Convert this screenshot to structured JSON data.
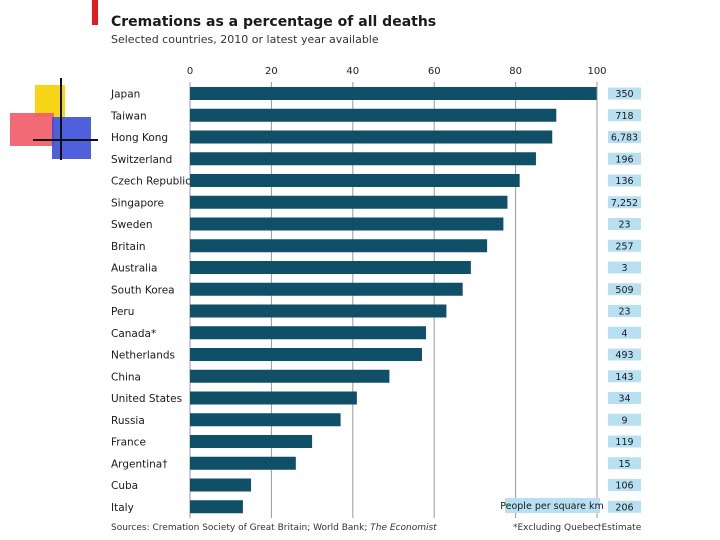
{
  "chart_data": {
    "type": "bar",
    "orientation": "horizontal",
    "title": "Cremations as a percentage of all deaths",
    "subtitle": "Selected countries, 2010 or latest year available",
    "xlim": [
      0,
      100
    ],
    "xticks": [
      0,
      20,
      40,
      60,
      80,
      100
    ],
    "grid": true,
    "categories": [
      "Japan",
      "Taiwan",
      "Hong Kong",
      "Switzerland",
      "Czech Republic",
      "Singapore",
      "Sweden",
      "Britain",
      "Australia",
      "South Korea",
      "Peru",
      "Canada*",
      "Netherlands",
      "China",
      "United States",
      "Russia",
      "France",
      "Argentina†",
      "Cuba",
      "Italy"
    ],
    "values": [
      99.9,
      90,
      89,
      85,
      81,
      78,
      77,
      73,
      69,
      67,
      63,
      58,
      57,
      49,
      41,
      37,
      30,
      26,
      15,
      13
    ],
    "density_label": "People per square km",
    "density": [
      "350",
      "718",
      "6,783",
      "196",
      "136",
      "7,252",
      "23",
      "257",
      "3",
      "509",
      "23",
      "4",
      "493",
      "143",
      "34",
      "9",
      "119",
      "15",
      "106",
      "206"
    ],
    "source": "Sources: Cremation Society of Great Britain; World Bank;",
    "source_italic": "The Economist",
    "footnote_1": "*Excluding Quebec",
    "footnote_2": "†Estimate",
    "colors": {
      "bar": "#0f4f67",
      "box": "#b7e0f2",
      "grid": "#999999",
      "accent": "#e31b23"
    }
  }
}
